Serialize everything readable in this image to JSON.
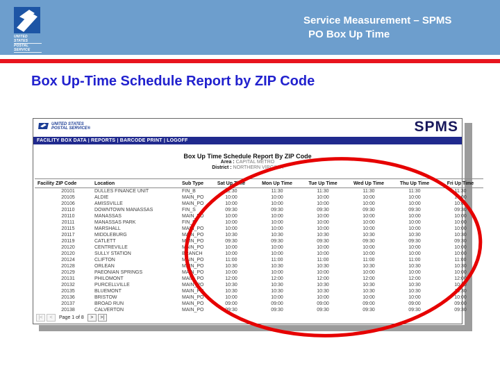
{
  "slide": {
    "band_logo": {
      "line1": "UNITED STATES",
      "line2": "POSTAL SERVICE"
    },
    "band_title_line1": "Service Measurement – SPMS",
    "band_title_line2": "PO Box Up Time",
    "title": "Box Up-Time Schedule Report by ZIP Code"
  },
  "app": {
    "brand_line1": "UNITED STATES",
    "brand_line2": "POSTAL SERVICE®",
    "product": "SPMS",
    "nav_separator": "|",
    "nav_items": [
      "FACILITY BOX DATA",
      "REPORTS",
      "BARCODE PRINT",
      "LOGOFF"
    ]
  },
  "report": {
    "title": "Box Up Time Schedule Report By ZIP Code",
    "area_label": "Area :",
    "area_value": "CAPITAL METRO",
    "district_label": "District :",
    "district_value": "NORTHERN VIRGINIA",
    "columns": [
      "Facility ZIP Code",
      "Location",
      "Sub Type",
      "Sat Up Time",
      "Mon Up Time",
      "Tue Up Time",
      "Wed Up Time",
      "Thu Up Time",
      "Fri Up Time"
    ],
    "rows": [
      [
        "20101",
        "DULLES FINANCE UNIT",
        "FIN_B",
        "11:30",
        "11:30",
        "11:30",
        "11:30",
        "11:30",
        "11:30"
      ],
      [
        "20105",
        "ALDIE",
        "MAIN_PO",
        "10:00",
        "10:00",
        "10:00",
        "10:00",
        "10:00",
        "10:00"
      ],
      [
        "20106",
        "AMISSVILLE",
        "MAIN_PO",
        "10:00",
        "10:00",
        "10:00",
        "10:00",
        "10:00",
        "10:00"
      ],
      [
        "20110",
        "DOWNTOWN MANASSAS",
        "FIN_S",
        "09:30",
        "09:30",
        "09:30",
        "09:30",
        "09:30",
        "09:30"
      ],
      [
        "20110",
        "MANASSAS",
        "MAIN_PO",
        "10:00",
        "10:00",
        "10:00",
        "10:00",
        "10:00",
        "10:00"
      ],
      [
        "20111",
        "MANASSAS PARK",
        "FIN_B",
        "10:00",
        "10:00",
        "10:00",
        "10:00",
        "10:00",
        "10:00"
      ],
      [
        "20115",
        "MARSHALL",
        "MAIN_PO",
        "10:00",
        "10:00",
        "10:00",
        "10:00",
        "10:00",
        "10:00"
      ],
      [
        "20117",
        "MIDDLEBURG",
        "MAIN_PO",
        "10:30",
        "10:30",
        "10:30",
        "10:30",
        "10:30",
        "10:30"
      ],
      [
        "20119",
        "CATLETT",
        "MAIN_PO",
        "09:30",
        "09:30",
        "09:30",
        "09:30",
        "09:30",
        "09:30"
      ],
      [
        "20120",
        "CENTREVILLE",
        "MAIN_PO",
        "10:00",
        "10:00",
        "10:00",
        "10:00",
        "10:00",
        "10:00"
      ],
      [
        "20120",
        "SULLY STATION",
        "BRANCH",
        "10:00",
        "10:00",
        "10:00",
        "10:00",
        "10:00",
        "10:00"
      ],
      [
        "20124",
        "CLIFTON",
        "MAIN_PO",
        "11:00",
        "11:00",
        "11:00",
        "11:00",
        "11:00",
        "11:00"
      ],
      [
        "20128",
        "ORLEAN",
        "MAIN_PO",
        "10:30",
        "10:30",
        "10:30",
        "10:30",
        "10:30",
        "10:30"
      ],
      [
        "20129",
        "PAEONIAN SPRINGS",
        "MAIN_PO",
        "10:00",
        "10:00",
        "10:00",
        "10:00",
        "10:00",
        "10:00"
      ],
      [
        "20131",
        "PHILOMONT",
        "MAIN_PO",
        "12:00",
        "12:00",
        "12:00",
        "12:00",
        "12:00",
        "12:00"
      ],
      [
        "20132",
        "PURCELLVILLE",
        "MAIN_PO",
        "10:30",
        "10:30",
        "10:30",
        "10:30",
        "10:30",
        "10:30"
      ],
      [
        "20135",
        "BLUEMONT",
        "MAIN_PO",
        "10:30",
        "10:30",
        "10:30",
        "10:30",
        "10:30",
        "10:30"
      ],
      [
        "20136",
        "BRISTOW",
        "MAIN_PO",
        "10:00",
        "10:00",
        "10:00",
        "10:00",
        "10:00",
        "10:00"
      ],
      [
        "20137",
        "BROAD RUN",
        "MAIN_PO",
        "09:00",
        "09:00",
        "09:00",
        "09:00",
        "09:00",
        "09:00"
      ],
      [
        "20138",
        "CALVERTON",
        "MAIN_PO",
        "09:30",
        "09:30",
        "09:30",
        "09:30",
        "09:30",
        "09:30"
      ]
    ],
    "pagination": {
      "first": "|<",
      "prev": "<",
      "label": "Page 1 of 8",
      "next": ">",
      "last": ">|"
    }
  },
  "annotation": {
    "shape": "ellipse",
    "color": "#e60000"
  },
  "colors": {
    "band_blue": "#6d9ecd",
    "divider_red": "#e8141e",
    "title_blue": "#2121ce",
    "nav_navy": "#202a8e",
    "spms_navy": "#18185c",
    "logo_blue": "#1d55a5",
    "shadow_gray": "#9c9c9c"
  }
}
